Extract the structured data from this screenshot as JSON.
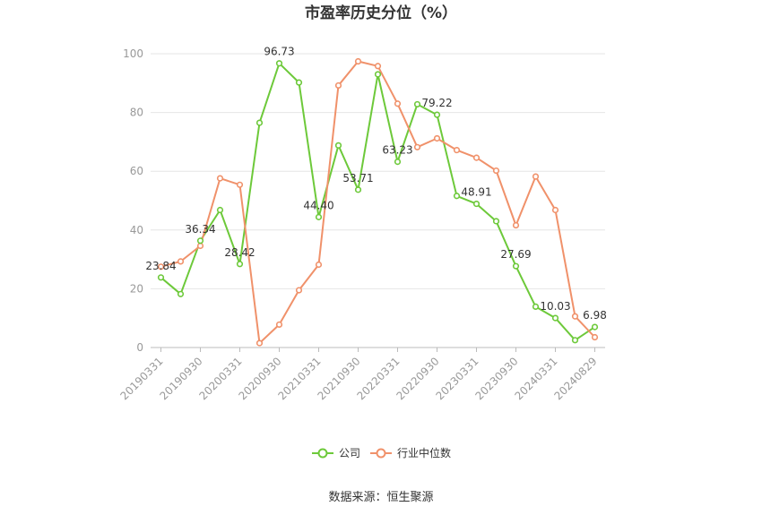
{
  "chart_data": {
    "type": "line",
    "title": "市盈率历史分位（%）",
    "source": "数据来源：恒生聚源",
    "ylim": [
      0,
      100
    ],
    "yticks": [
      0,
      20,
      40,
      60,
      80,
      100
    ],
    "grid": true,
    "legend_position": "bottom",
    "x": [
      "20190331",
      "20190630",
      "20190930",
      "20191231",
      "20200331",
      "20200630",
      "20200930",
      "20201231",
      "20210331",
      "20210630",
      "20210930",
      "20211231",
      "20220331",
      "20220630",
      "20220930",
      "20221231",
      "20230331",
      "20230630",
      "20230930",
      "20231231",
      "20240331",
      "20240630",
      "20240829"
    ],
    "xtick_labels": [
      "20190331",
      "20190930",
      "20200331",
      "20200930",
      "20210331",
      "20210930",
      "20220331",
      "20220930",
      "20230331",
      "20230930",
      "20240331",
      "20240829"
    ],
    "series": [
      {
        "name": "公司",
        "color": "#6dc93a",
        "values": [
          23.84,
          18.2,
          36.34,
          46.8,
          28.42,
          76.5,
          96.73,
          90.2,
          44.4,
          68.8,
          53.71,
          93.0,
          63.23,
          82.8,
          79.22,
          51.6,
          48.91,
          43.0,
          27.69,
          13.9,
          10.03,
          2.5,
          6.98
        ],
        "labels": {
          "0": "23.84",
          "2": "36.34",
          "4": "28.42",
          "6": "96.73",
          "8": "44.40",
          "10": "53.71",
          "12": "63.23",
          "14": "79.22",
          "16": "48.91",
          "18": "27.69",
          "20": "10.03",
          "22": "6.98"
        }
      },
      {
        "name": "行业中位数",
        "color": "#f0916a",
        "values": [
          27.5,
          29.3,
          34.6,
          57.6,
          55.4,
          1.5,
          7.8,
          19.5,
          28.2,
          89.2,
          97.4,
          95.8,
          83.0,
          68.2,
          71.2,
          67.2,
          64.6,
          60.2,
          41.6,
          58.2,
          46.8,
          10.6,
          3.5
        ]
      }
    ]
  }
}
